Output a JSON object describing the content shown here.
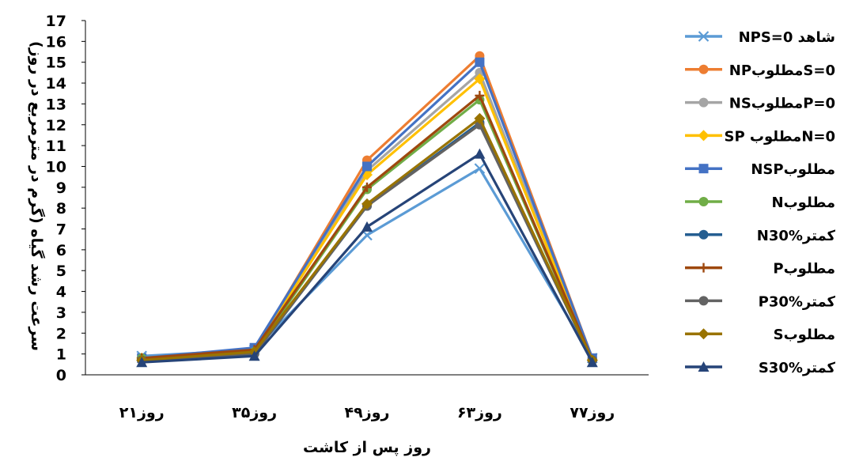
{
  "chart_data": {
    "type": "line",
    "title": "",
    "xlabel": "روز پس از کاشت",
    "ylabel": "سرعت رشد گیاه (گرم در مترمربع در روز)",
    "ylim": [
      0,
      17
    ],
    "y_ticks": [
      0,
      1,
      2,
      3,
      4,
      5,
      6,
      7,
      8,
      9,
      10,
      11,
      12,
      13,
      14,
      15,
      16,
      17
    ],
    "grid": false,
    "legend_position": "right",
    "categories": [
      "۲۱روز",
      "۳۵روز",
      "۴۹روز",
      "۶۳روز",
      "۷۷روز"
    ],
    "series": [
      {
        "name": "شاهد NPS=0",
        "legend_label": "NPS=0 شاهد",
        "color": "#5B9BD5",
        "marker": "x",
        "values": [
          0.9,
          1.2,
          6.7,
          9.9,
          0.8
        ]
      },
      {
        "name": "مطلوبNP S=0",
        "legend_label": "NPمطلوبS=0",
        "color": "#ED7D31",
        "marker": "circle",
        "values": [
          0.8,
          1.2,
          10.3,
          15.3,
          0.8
        ]
      },
      {
        "name": "مطلوبNS P=0",
        "legend_label": "NSمطلوبP=0",
        "color": "#A5A5A5",
        "marker": "circle",
        "values": [
          0.8,
          1.2,
          9.8,
          14.5,
          0.7
        ]
      },
      {
        "name": "مطلوب SP N=0",
        "legend_label": "SP مطلوبN=0",
        "color": "#FFC000",
        "marker": "diamond",
        "values": [
          0.8,
          1.2,
          9.6,
          14.2,
          0.7
        ]
      },
      {
        "name": "مطلوبNSP",
        "legend_label": "NSPمطلوب",
        "color": "#4472C4",
        "marker": "square",
        "values": [
          0.8,
          1.3,
          10.0,
          15.0,
          0.8
        ]
      },
      {
        "name": "مطلوبN",
        "legend_label": "Nمطلوب",
        "color": "#70AD47",
        "marker": "circle",
        "values": [
          0.8,
          1.1,
          8.9,
          13.2,
          0.7
        ]
      },
      {
        "name": "کمترN30%",
        "legend_label": "N30%کمتر",
        "color": "#255E91",
        "marker": "circle",
        "values": [
          0.7,
          1.0,
          8.1,
          12.1,
          0.7
        ]
      },
      {
        "name": "مطلوبP",
        "legend_label": "Pمطلوب",
        "color": "#9E480E",
        "marker": "plus",
        "values": [
          0.8,
          1.2,
          9.0,
          13.4,
          0.7
        ]
      },
      {
        "name": "کمترP30%",
        "legend_label": "P30%کمتر",
        "color": "#636363",
        "marker": "circle",
        "values": [
          0.7,
          1.0,
          8.1,
          12.0,
          0.7
        ]
      },
      {
        "name": "مطلوبS",
        "legend_label": "Sمطلوب",
        "color": "#997300",
        "marker": "diamond",
        "values": [
          0.7,
          1.1,
          8.2,
          12.3,
          0.7
        ]
      },
      {
        "name": "کمترS30%",
        "legend_label": "S30%کمتر",
        "color": "#264478",
        "marker": "triangle",
        "values": [
          0.6,
          0.9,
          7.1,
          10.6,
          0.6
        ]
      }
    ]
  }
}
